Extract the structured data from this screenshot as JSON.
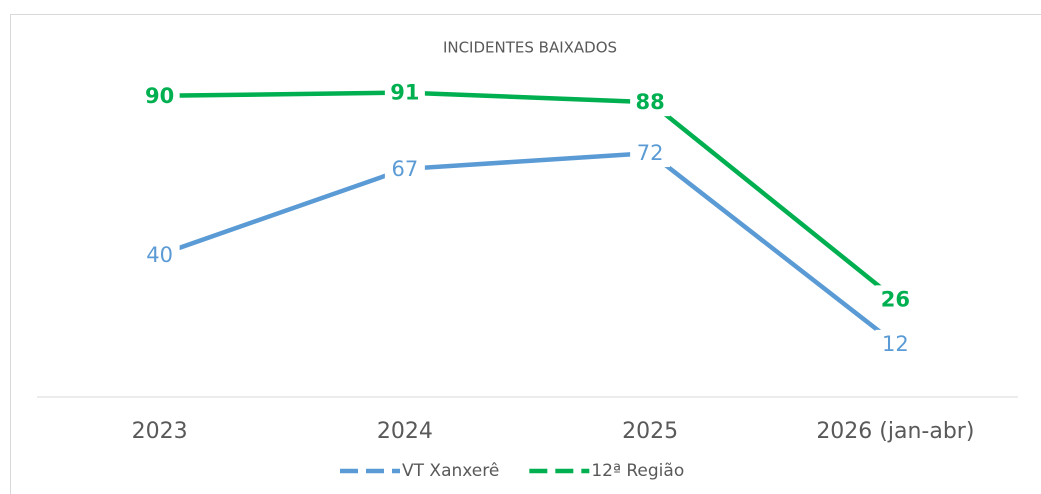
{
  "chart_data": {
    "type": "line",
    "title": "INCIDENTES BAIXADOS",
    "categories": [
      "2023",
      "2024",
      "2025",
      "2026 (jan-abr)"
    ],
    "series": [
      {
        "name": "VT Xanxerê",
        "color": "#5b9bd5",
        "values": [
          40,
          67,
          72,
          12
        ]
      },
      {
        "name": "12ª Região",
        "color": "#00b050",
        "values": [
          90,
          91,
          88,
          26
        ]
      }
    ],
    "ylim": [
      0,
      100
    ],
    "legend": "bottom",
    "grid": false
  }
}
